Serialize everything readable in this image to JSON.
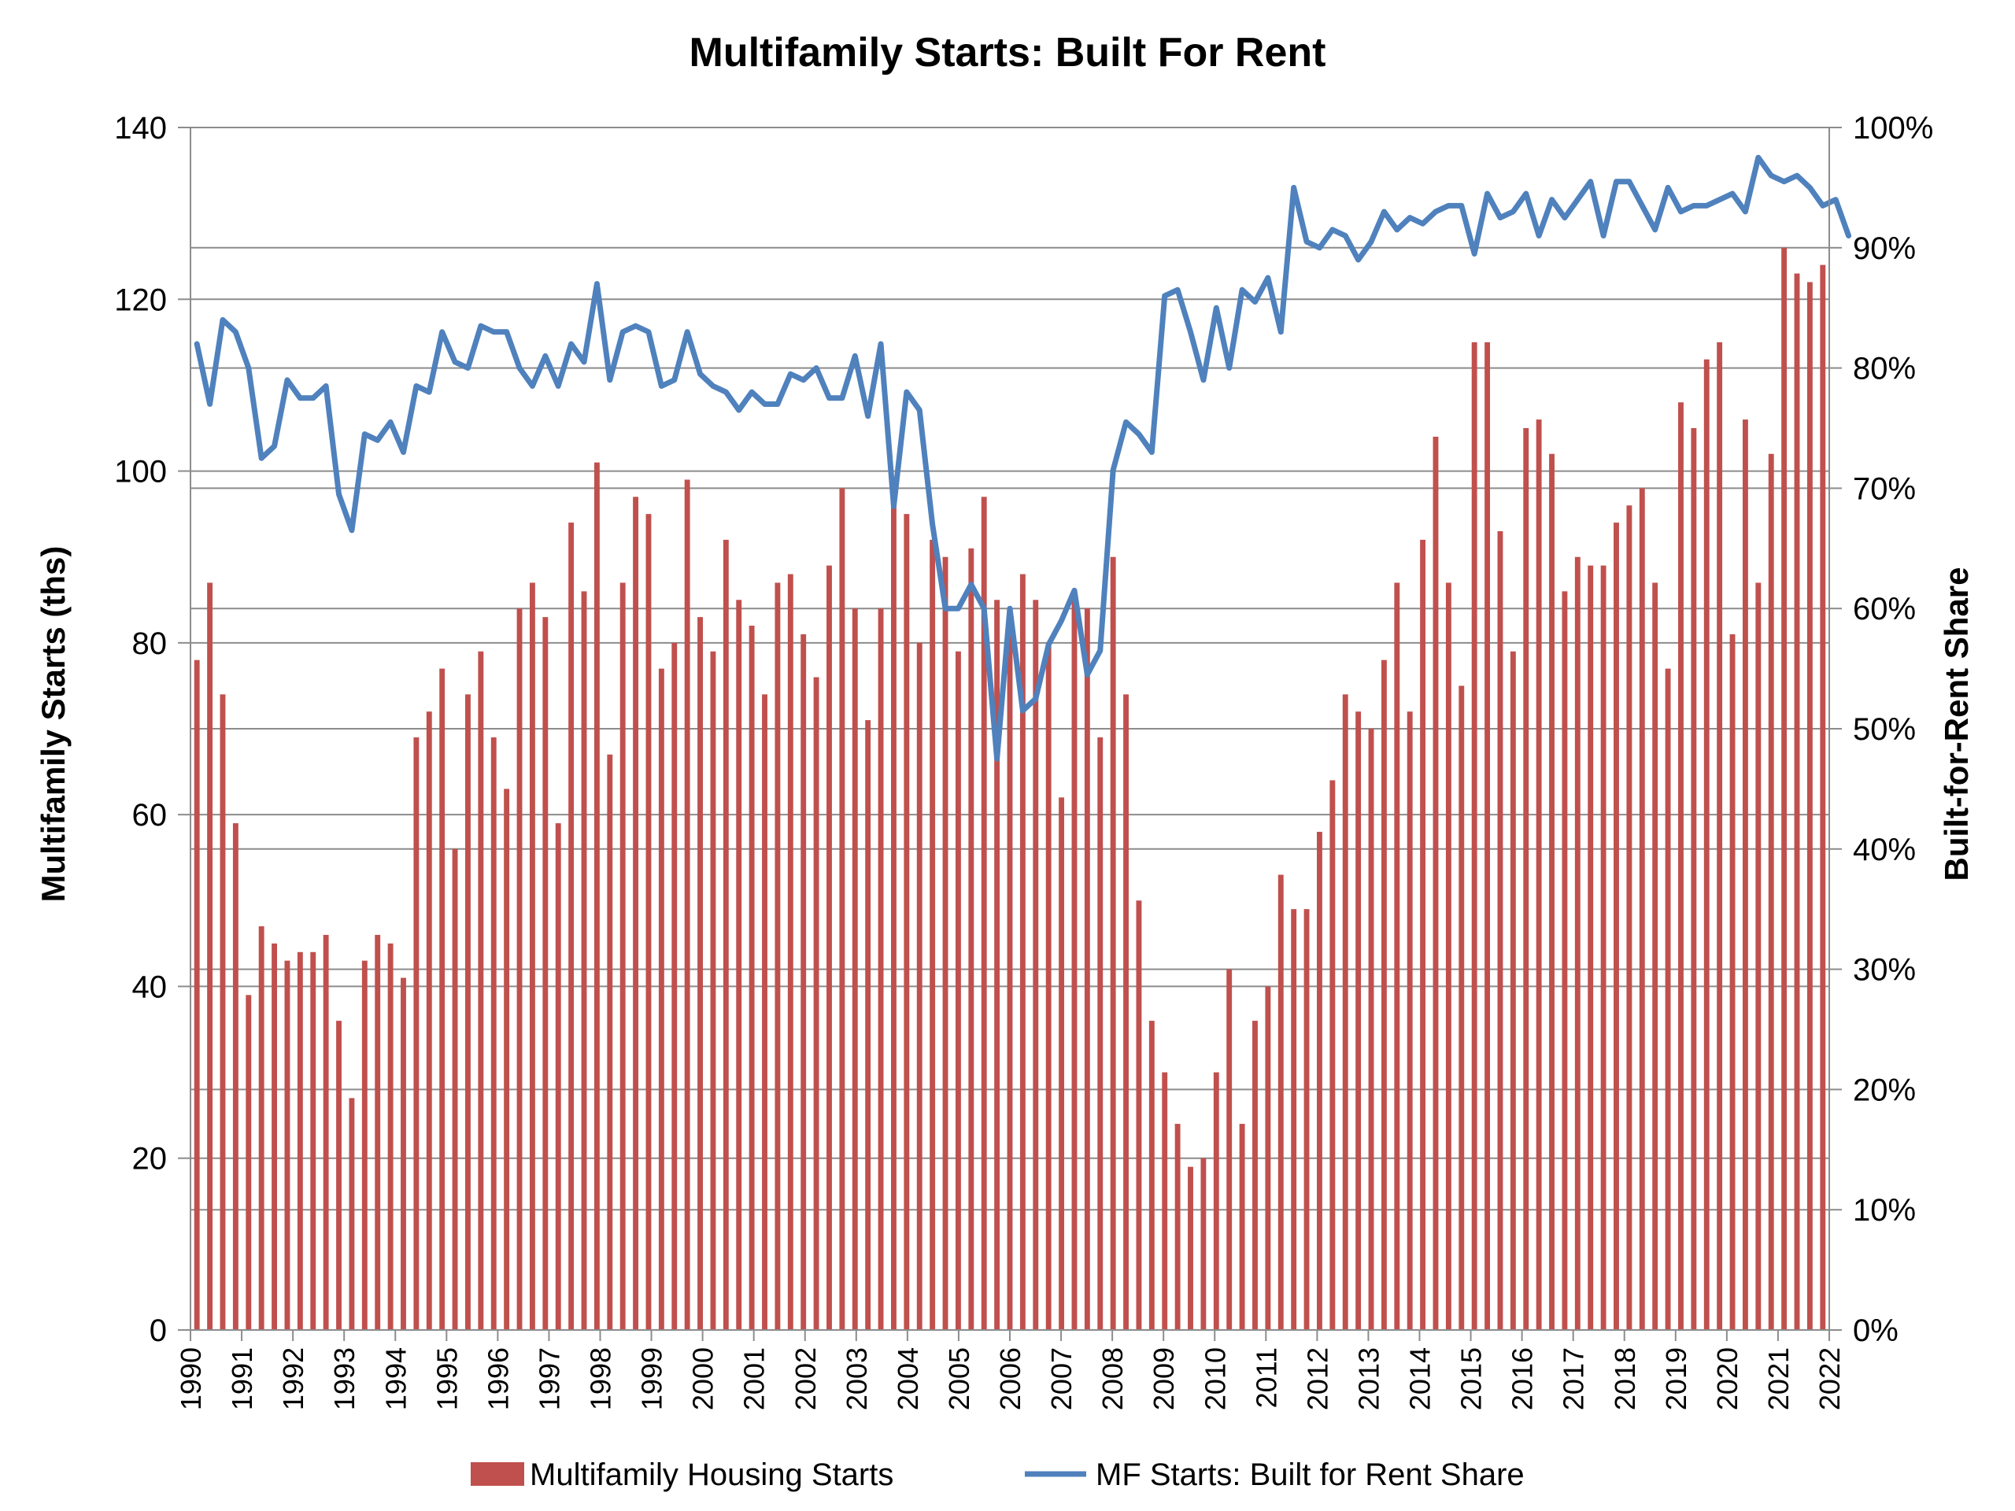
{
  "chart_data": {
    "type": "bar",
    "title": "Multifamily Starts: Built For Rent",
    "y_left_label": "Multifamily Starts (ths)",
    "y_right_label": "Built-for-Rent Share",
    "y_left_range": [
      0,
      140
    ],
    "y_left_ticks": [
      "0",
      "20",
      "40",
      "60",
      "80",
      "100",
      "120",
      "140"
    ],
    "y_right_range": [
      0,
      100
    ],
    "y_right_ticks": [
      "0%",
      "10%",
      "20%",
      "30%",
      "40%",
      "50%",
      "60%",
      "70%",
      "80%",
      "90%",
      "100%"
    ],
    "x_tick_labels": [
      "1990",
      "1991",
      "1992",
      "1993",
      "1994",
      "1995",
      "1996",
      "1997",
      "1998",
      "1999",
      "2000",
      "2001",
      "2002",
      "2003",
      "2004",
      "2005",
      "2006",
      "2007",
      "2008",
      "2009",
      "2010",
      "2011",
      "2012",
      "2013",
      "2014",
      "2015",
      "2016",
      "2017",
      "2018",
      "2019",
      "2020",
      "2021",
      "2022"
    ],
    "grid": "horizontal",
    "legend_position": "bottom",
    "series": [
      {
        "name": "Multifamily Housing Starts",
        "type": "bar",
        "axis": "left",
        "color": "#c0504d",
        "values": [
          78,
          87,
          74,
          59,
          39,
          47,
          45,
          43,
          44,
          44,
          46,
          36,
          27,
          43,
          46,
          45,
          41,
          69,
          72,
          77,
          56,
          74,
          79,
          69,
          63,
          84,
          87,
          83,
          59,
          94,
          86,
          101,
          67,
          87,
          97,
          95,
          77,
          80,
          99,
          83,
          79,
          92,
          85,
          82,
          74,
          87,
          88,
          81,
          76,
          89,
          98,
          84,
          71,
          84,
          96,
          95,
          80,
          92,
          90,
          79,
          91,
          97,
          85,
          82,
          88,
          85,
          80,
          62,
          85,
          84,
          69,
          90,
          74,
          50,
          36,
          30,
          24,
          19,
          20,
          30,
          42,
          24,
          36,
          40,
          53,
          49,
          49,
          58,
          64,
          74,
          72,
          70,
          78,
          87,
          72,
          92,
          104,
          87,
          75,
          115,
          115,
          93,
          79,
          105,
          106,
          102,
          86,
          90,
          89,
          89,
          94,
          96,
          98,
          87,
          77,
          108,
          105,
          113,
          115,
          81,
          106,
          87,
          102,
          126,
          123,
          122,
          124
        ]
      },
      {
        "name": "MF Starts: Built for Rent Share",
        "type": "line",
        "axis": "right",
        "color": "#4f81bd",
        "values": [
          82,
          77,
          84,
          83,
          80,
          72.5,
          73.5,
          79,
          77.5,
          77.5,
          78.5,
          69.5,
          66.5,
          74.5,
          74,
          75.5,
          73,
          78.5,
          78,
          83,
          80.5,
          80,
          83.5,
          83,
          83,
          80,
          78.5,
          81,
          78.5,
          82,
          80.5,
          87,
          79,
          83,
          83.5,
          83,
          78.5,
          79,
          83,
          79.5,
          78.5,
          78,
          76.5,
          78,
          77,
          77,
          79.5,
          79,
          80,
          77.5,
          77.5,
          81,
          76,
          82,
          68.5,
          78,
          76.5,
          67,
          60,
          60,
          62,
          60,
          47.5,
          60,
          51.5,
          52.5,
          57,
          59,
          61.5,
          54.5,
          56.5,
          71.5,
          75.5,
          74.5,
          73,
          86,
          86.5,
          83,
          79,
          85,
          80,
          86.5,
          85.5,
          87.5,
          83,
          95,
          90.5,
          90,
          91.5,
          91,
          89,
          90.5,
          93,
          91.5,
          92.5,
          92,
          93,
          93.5,
          93.5,
          89.5,
          94.5,
          92.5,
          93,
          94.5,
          91,
          94,
          92.5,
          94,
          95.5,
          91,
          95.5,
          95.5,
          93.5,
          91.5,
          95,
          93,
          93.5,
          93.5,
          94,
          94.5,
          93,
          97.5,
          96,
          95.5,
          96,
          95,
          93.5,
          94,
          91
        ]
      }
    ]
  }
}
